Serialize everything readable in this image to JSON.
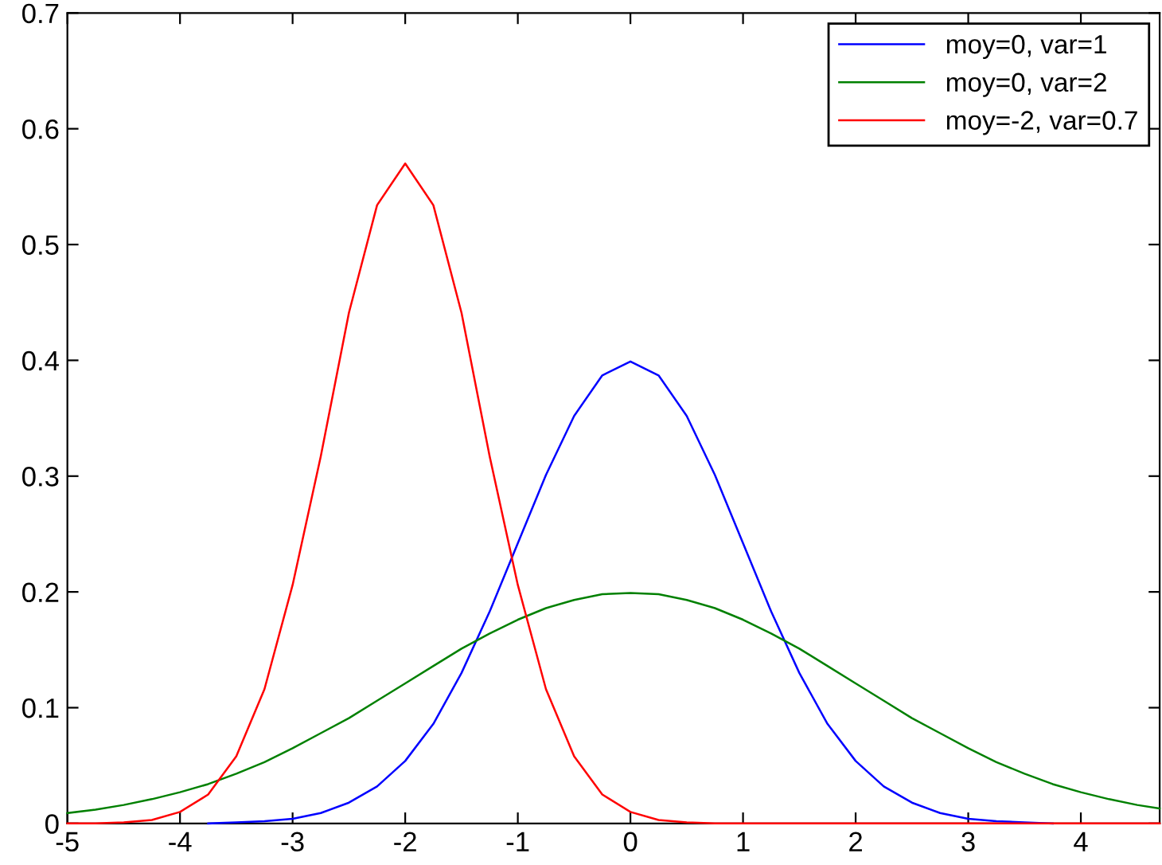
{
  "chart_data": {
    "type": "line",
    "x": [
      -5,
      -4.75,
      -4.5,
      -4.25,
      -4,
      -3.75,
      -3.5,
      -3.25,
      -3,
      -2.75,
      -2.5,
      -2.25,
      -2,
      -1.75,
      -1.5,
      -1.25,
      -1,
      -0.75,
      -0.5,
      -0.25,
      0,
      0.25,
      0.5,
      0.75,
      1,
      1.25,
      1.5,
      1.75,
      2,
      2.25,
      2.5,
      2.75,
      3,
      3.25,
      3.5,
      3.75,
      4,
      4.25,
      4.5,
      4.7
    ],
    "series": [
      {
        "name": "moy=0, var=1",
        "color": "#0000ff",
        "values": [
          null,
          null,
          null,
          null,
          null,
          0,
          0.001,
          0.002,
          0.004,
          0.009,
          0.018,
          0.032,
          0.054,
          0.086,
          0.13,
          0.183,
          0.242,
          0.301,
          0.352,
          0.387,
          0.399,
          0.387,
          0.352,
          0.301,
          0.242,
          0.183,
          0.13,
          0.086,
          0.054,
          0.032,
          0.018,
          0.009,
          0.004,
          0.002,
          0.001,
          0,
          null,
          null,
          null,
          null
        ]
      },
      {
        "name": "moy=0, var=2",
        "color": "#008000",
        "values": [
          0.009,
          0.012,
          0.016,
          0.021,
          0.027,
          0.034,
          0.043,
          0.053,
          0.065,
          0.078,
          0.091,
          0.106,
          0.121,
          0.136,
          0.151,
          0.164,
          0.176,
          0.186,
          0.193,
          0.198,
          0.199,
          0.198,
          0.193,
          0.186,
          0.176,
          0.164,
          0.151,
          0.136,
          0.121,
          0.106,
          0.091,
          0.078,
          0.065,
          0.053,
          0.043,
          0.034,
          0.027,
          0.021,
          0.016,
          0.013
        ]
      },
      {
        "name": "moy=-2, var=0.7",
        "color": "#ff0000",
        "values": [
          0,
          0,
          0.001,
          0.003,
          0.01,
          0.025,
          0.058,
          0.116,
          0.206,
          0.317,
          0.441,
          0.534,
          0.57,
          0.534,
          0.441,
          0.317,
          0.206,
          0.116,
          0.058,
          0.025,
          0.01,
          0.003,
          0.001,
          0,
          0,
          0,
          0,
          0,
          0,
          0,
          0,
          0,
          0,
          0,
          0,
          0,
          0,
          0,
          0,
          0
        ]
      }
    ],
    "xlim": [
      -5,
      4.7
    ],
    "xticks": [
      -5,
      -4,
      -3,
      -2,
      -1,
      0,
      1,
      2,
      3,
      4
    ],
    "ylim": [
      0,
      0.7
    ],
    "yticks": [
      0,
      0.1,
      0.2,
      0.3,
      0.4,
      0.5,
      0.6,
      0.7
    ],
    "grid": false,
    "legend": "top right",
    "marker": "none",
    "line_style": "solid"
  }
}
